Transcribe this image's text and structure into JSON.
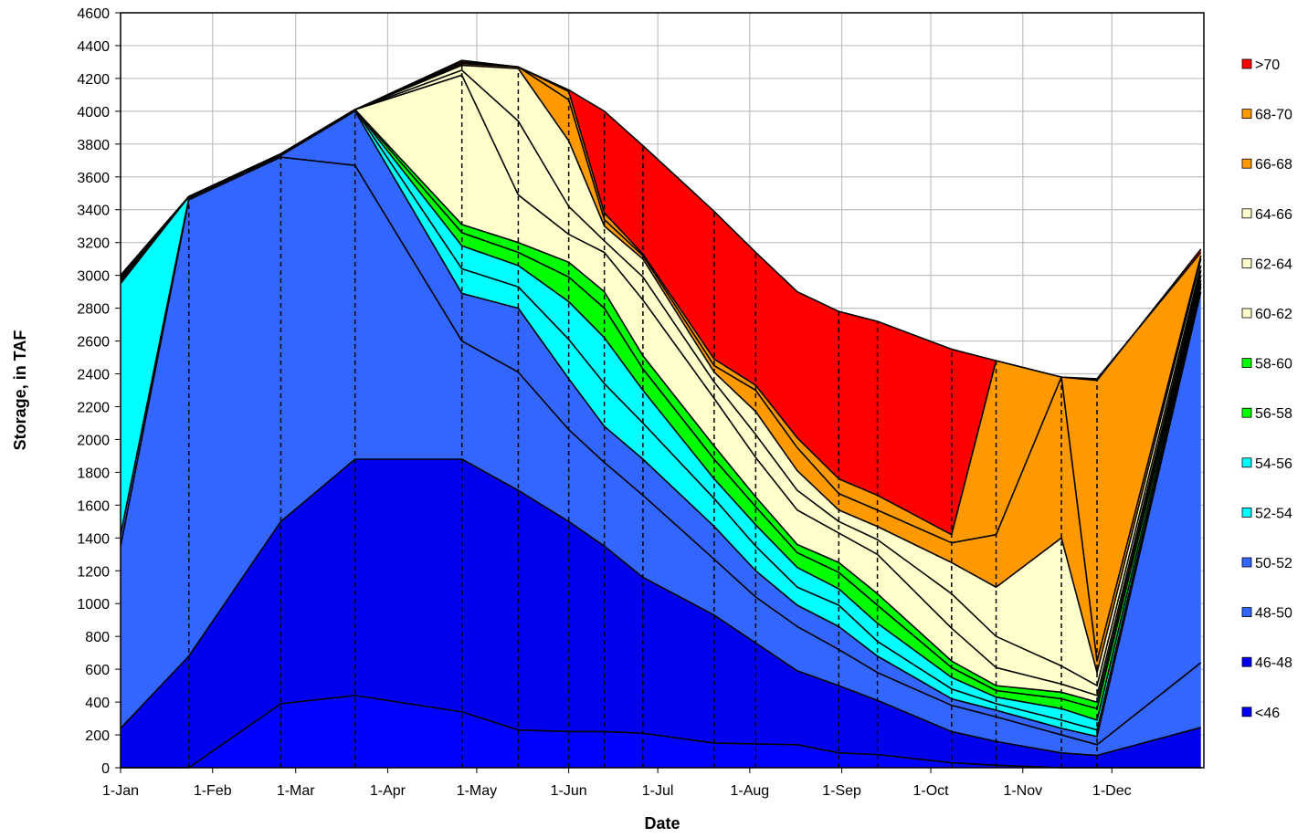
{
  "chart_data": {
    "type": "area",
    "title": "",
    "xlabel": "Date",
    "ylabel": "Storage, in TAF",
    "ylim": [
      0,
      4600
    ],
    "y_ticks": [
      0,
      200,
      400,
      600,
      800,
      1000,
      1200,
      1400,
      1600,
      1800,
      2000,
      2200,
      2400,
      2600,
      2800,
      3000,
      3200,
      3400,
      3600,
      3800,
      4000,
      4200,
      4400,
      4600
    ],
    "x_tick_labels": [
      "1-Jan",
      "1-Feb",
      "1-Mar",
      "1-Apr",
      "1-May",
      "1-Jun",
      "1-Jul",
      "1-Aug",
      "1-Sep",
      "1-Oct",
      "1-Nov",
      "1-Dec"
    ],
    "x_ticks": [
      "2021-01-01",
      "2021-02-01",
      "2021-03-01",
      "2021-04-01",
      "2021-05-01",
      "2021-06-01",
      "2021-07-01",
      "2021-08-01",
      "2021-09-01",
      "2021-10-01",
      "2021-11-01",
      "2021-12-01"
    ],
    "x_range": [
      "2021-01-01",
      "2021-12-31"
    ],
    "grid": true,
    "legend_position": "right",
    "x": [
      "2021-01-01",
      "2021-01-24",
      "2021-02-24",
      "2021-03-21",
      "2021-04-26",
      "2021-05-15",
      "2021-06-01",
      "2021-06-13",
      "2021-06-26",
      "2021-07-20",
      "2021-08-03",
      "2021-08-17",
      "2021-08-31",
      "2021-09-13",
      "2021-10-08",
      "2021-10-23",
      "2021-11-14",
      "2021-11-26",
      "2021-12-31"
    ],
    "reference_dates": [
      "2021-01-24",
      "2021-02-24",
      "2021-03-21",
      "2021-04-26",
      "2021-05-15",
      "2021-06-01",
      "2021-06-13",
      "2021-06-26",
      "2021-07-20",
      "2021-08-03",
      "2021-08-31",
      "2021-09-13",
      "2021-10-08",
      "2021-10-23",
      "2021-11-14",
      "2021-11-26"
    ],
    "series": [
      {
        "name": "<46",
        "color": "#0000FF",
        "values": [
          0,
          0,
          390,
          440,
          340,
          230,
          220,
          220,
          210,
          150,
          145,
          140,
          90,
          80,
          30,
          15,
          0,
          0,
          0
        ]
      },
      {
        "name": "46-48",
        "color": "#0000EE",
        "values": [
          240,
          680,
          1500,
          1880,
          1880,
          1690,
          1500,
          1350,
          1160,
          930,
          760,
          590,
          500,
          410,
          220,
          160,
          90,
          75,
          245
        ]
      },
      {
        "name": "48-50",
        "color": "#3366FF",
        "values": [
          1350,
          3460,
          3720,
          3670,
          2600,
          2410,
          2060,
          1860,
          1660,
          1270,
          1040,
          860,
          720,
          580,
          380,
          310,
          200,
          140,
          640
        ]
      },
      {
        "name": "50-52",
        "color": "#3366FF",
        "values": [
          1420,
          3470,
          3730,
          4000,
          2890,
          2800,
          2370,
          2080,
          1880,
          1470,
          1200,
          990,
          860,
          680,
          420,
          350,
          240,
          190,
          2900
        ]
      },
      {
        "name": "52-54",
        "color": "#00FFFF",
        "values": [
          2950,
          3480,
          3740,
          4010,
          3040,
          2930,
          2610,
          2340,
          2100,
          1640,
          1350,
          1100,
          990,
          770,
          480,
          390,
          290,
          230,
          2930
        ]
      },
      {
        "name": "54-56",
        "color": "#00FFFF",
        "values": [
          2960,
          3480,
          3740,
          4010,
          3180,
          3060,
          2840,
          2620,
          2300,
          1760,
          1480,
          1220,
          1090,
          880,
          550,
          430,
          360,
          290,
          2950
        ]
      },
      {
        "name": "56-58",
        "color": "#00FF00",
        "values": [
          2970,
          3480,
          3740,
          4010,
          3260,
          3140,
          2990,
          2800,
          2430,
          1880,
          1590,
          1310,
          1190,
          990,
          610,
          470,
          420,
          360,
          2970
        ]
      },
      {
        "name": "58-60",
        "color": "#00FF00",
        "values": [
          2980,
          3480,
          3740,
          4010,
          3310,
          3200,
          3080,
          2900,
          2510,
          1960,
          1650,
          1360,
          1250,
          1060,
          650,
          500,
          460,
          400,
          3000
        ]
      },
      {
        "name": "60-62",
        "color": "#FFFFCC",
        "values": [
          2990,
          3480,
          3740,
          4010,
          4220,
          3490,
          3250,
          3140,
          2850,
          2250,
          1890,
          1570,
          1430,
          1300,
          850,
          610,
          510,
          440,
          3030
        ]
      },
      {
        "name": "62-64",
        "color": "#FFFFCC",
        "values": [
          3000,
          3480,
          3740,
          4010,
          4250,
          3940,
          3420,
          3210,
          2990,
          2350,
          2030,
          1690,
          1500,
          1390,
          1060,
          800,
          620,
          500,
          3060
        ]
      },
      {
        "name": "64-66",
        "color": "#FFFFCC",
        "values": [
          3000,
          3480,
          3740,
          4010,
          4280,
          4260,
          3820,
          3300,
          3100,
          2410,
          2170,
          1810,
          1570,
          1470,
          1250,
          1100,
          1400,
          580,
          3100
        ]
      },
      {
        "name": "66-68",
        "color": "#FF9900",
        "values": [
          3000,
          3480,
          3740,
          4010,
          4290,
          4270,
          4070,
          3340,
          3120,
          2450,
          2300,
          1950,
          1670,
          1570,
          1370,
          1420,
          2380,
          650,
          3120
        ]
      },
      {
        "name": "68-70",
        "color": "#FF9900",
        "values": [
          3000,
          3480,
          3740,
          4010,
          4300,
          4270,
          4120,
          3380,
          3130,
          2490,
          2330,
          2010,
          1760,
          1660,
          1420,
          2480,
          2380,
          2370,
          3140
        ]
      },
      {
        "name": ">70",
        "color": "#FF0000",
        "values": [
          3000,
          3480,
          3740,
          4010,
          4310,
          4270,
          4130,
          4000,
          3790,
          3390,
          3140,
          2900,
          2780,
          2720,
          2550,
          2480,
          2380,
          2360,
          3160
        ]
      }
    ],
    "legend": [
      {
        "label": ">70",
        "color": "#FF0000"
      },
      {
        "label": "68-70",
        "color": "#FF9900"
      },
      {
        "label": "66-68",
        "color": "#FF9900"
      },
      {
        "label": "64-66",
        "color": "#FFFFCC"
      },
      {
        "label": "62-64",
        "color": "#FFFFCC"
      },
      {
        "label": "60-62",
        "color": "#FFFFCC"
      },
      {
        "label": "58-60",
        "color": "#00FF00"
      },
      {
        "label": "56-58",
        "color": "#00FF00"
      },
      {
        "label": "54-56",
        "color": "#00FFFF"
      },
      {
        "label": "52-54",
        "color": "#00FFFF"
      },
      {
        "label": "50-52",
        "color": "#3366FF"
      },
      {
        "label": "48-50",
        "color": "#3366FF"
      },
      {
        "label": "46-48",
        "color": "#0000EE"
      },
      {
        "label": "<46",
        "color": "#0000FF"
      }
    ]
  }
}
